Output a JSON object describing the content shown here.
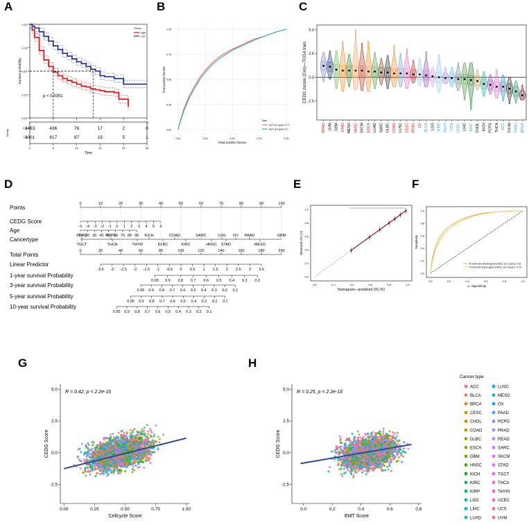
{
  "panel_letters": [
    "A",
    "B",
    "C",
    "D",
    "E",
    "F",
    "G",
    "H"
  ],
  "chart_data": [
    {
      "id": "A",
      "type": "line",
      "title": "",
      "xlabel": "Time",
      "ylabel": "Survival probability",
      "xlim": [
        0,
        25
      ],
      "ylim": [
        0,
        1
      ],
      "xticks": [
        "0",
        "5",
        "10",
        "15",
        "20",
        "25"
      ],
      "yticks": [
        "0.00",
        "0.25",
        "0.50",
        "0.75",
        "1.00"
      ],
      "legend_title": "Group",
      "series": [
        {
          "name": "High",
          "color": "#e41a1c",
          "x": [
            0,
            0.5,
            1,
            2,
            3,
            4,
            5,
            6,
            7,
            8,
            9,
            10,
            11,
            12,
            13,
            14,
            15,
            16,
            17,
            18,
            19,
            20,
            21
          ],
          "y": [
            1,
            0.94,
            0.86,
            0.72,
            0.62,
            0.55,
            0.49,
            0.45,
            0.42,
            0.4,
            0.38,
            0.36,
            0.34,
            0.33,
            0.31,
            0.3,
            0.29,
            0.28,
            0.28,
            0.27,
            0.2,
            0.2,
            0.12
          ]
        },
        {
          "name": "Low",
          "color": "#2b3a8f",
          "x": [
            0,
            0.5,
            1,
            2,
            3,
            4,
            5,
            6,
            7,
            8,
            9,
            10,
            11,
            12,
            13,
            14,
            15,
            16,
            17,
            18,
            19,
            20,
            21,
            25
          ],
          "y": [
            1,
            0.98,
            0.96,
            0.92,
            0.87,
            0.82,
            0.77,
            0.73,
            0.69,
            0.66,
            0.63,
            0.6,
            0.58,
            0.55,
            0.52,
            0.5,
            0.45,
            0.44,
            0.44,
            0.42,
            0.42,
            0.36,
            0.36,
            0.36
          ]
        }
      ],
      "annotation": "p < 0.0001",
      "median_lines": {
        "y": 0.5,
        "x": [
          5,
          13.5
        ]
      },
      "risk_table": {
        "ylabel": "Group",
        "times": [
          "0",
          "5",
          "10",
          "15",
          "20",
          "25"
        ],
        "rows": [
          {
            "group": "High",
            "counts": [
              "3483",
              "436",
              "76",
              "17",
              "2",
              "0"
            ]
          },
          {
            "group": "Low",
            "counts": [
              "3001",
              "617",
              "87",
              "15",
              "5",
              "1"
            ]
          }
        ]
      }
    },
    {
      "id": "B",
      "type": "line",
      "title": "",
      "xlabel": "False positive fraction",
      "ylabel": "True positive fraction",
      "xlim": [
        0,
        1
      ],
      "ylim": [
        0,
        1
      ],
      "xticks": [
        "0.00",
        "0.25",
        "0.50",
        "0.75",
        "1.00"
      ],
      "yticks": [
        "0.00",
        "0.25",
        "0.50",
        "0.75",
        "1.00"
      ],
      "legend_title": "Type",
      "series": [
        {
          "name": "AUC at 3 years: 0.77",
          "color": "#f4685c",
          "x": [
            0,
            0.02,
            0.05,
            0.1,
            0.15,
            0.2,
            0.25,
            0.3,
            0.35,
            0.4,
            0.5,
            0.6,
            0.7,
            0.8,
            0.9,
            1.0
          ],
          "y": [
            0,
            0.09,
            0.2,
            0.33,
            0.43,
            0.52,
            0.59,
            0.65,
            0.7,
            0.74,
            0.8,
            0.85,
            0.9,
            0.93,
            0.97,
            1.0
          ]
        },
        {
          "name": "AUC at 5 years: 0.7",
          "color": "#13b6bf",
          "x": [
            0,
            0.02,
            0.05,
            0.1,
            0.15,
            0.2,
            0.25,
            0.3,
            0.35,
            0.4,
            0.5,
            0.6,
            0.7,
            0.8,
            0.9,
            1.0
          ],
          "y": [
            0,
            0.08,
            0.18,
            0.31,
            0.41,
            0.5,
            0.57,
            0.63,
            0.68,
            0.72,
            0.79,
            0.84,
            0.89,
            0.93,
            0.97,
            1.0
          ]
        }
      ]
    },
    {
      "id": "C",
      "type": "violin",
      "title": "",
      "xlabel": "",
      "ylabel": "CEDG zscore (Cox)—TCGA train",
      "ylim": [
        -4.5,
        5.5
      ],
      "yticks": [
        "-2.5",
        "0.0",
        "2.5",
        "5.0"
      ],
      "reference_line": 0,
      "categories": [
        "PRAD",
        "UVM",
        "GBM",
        "STAD",
        "MESO",
        "HNSC",
        "SKCM",
        "ESCA",
        "LUAD",
        "SARC",
        "DLBC",
        "COAD",
        "LUSC",
        "CESC",
        "READ",
        "OV",
        "BLCA",
        "LGG",
        "KIRP",
        "TGCT",
        "UCS",
        "UCEC",
        "LIHC",
        "KIRC",
        "CHOL",
        "KICH",
        "PCPG",
        "THCA",
        "ACC",
        "THYM",
        "PAAD",
        "BRCA"
      ],
      "label_colors": [
        "#e41a1c",
        "#000000",
        "#000000",
        "#e41a1c",
        "#000000",
        "#e41a1c",
        "#000000",
        "#e41a1c",
        "#000000",
        "#000000",
        "#000000",
        "#e41a1c",
        "#000000",
        "#e41a1c",
        "#e41a1c",
        "#e41a1c",
        "#2ca7e0",
        "#000000",
        "#2ca7e0",
        "#2ca7e0",
        "#2ca7e0",
        "#2ca7e0",
        "#000000",
        "#2ca7e0",
        "#000000",
        "#000000",
        "#000000",
        "#000000",
        "#2ca7e0",
        "#000000",
        "#2ca7e0",
        "#2ca7e0"
      ],
      "means": [
        1.2,
        1.1,
        0.8,
        0.7,
        0.7,
        0.7,
        0.7,
        0.6,
        0.6,
        0.5,
        0.5,
        0.4,
        0.4,
        0.4,
        0.3,
        0.3,
        0.2,
        0.1,
        0.0,
        -0.1,
        -0.1,
        -0.2,
        -0.2,
        -0.3,
        -0.4,
        -0.7,
        -0.8,
        -1.0,
        -1.0,
        -1.2,
        -1.5,
        -1.9
      ],
      "mins": [
        -0.5,
        -0.2,
        -1.2,
        -1.5,
        -1.0,
        -1.3,
        -1.4,
        -1.5,
        -1.2,
        -0.8,
        -1.2,
        -1.0,
        -1.0,
        -1.2,
        -0.6,
        -0.9,
        -1.0,
        -1.0,
        -1.6,
        -0.7,
        -1.0,
        -1.4,
        -2.4,
        -3.4,
        -1.3,
        -2.0,
        -1.8,
        -2.2,
        -2.5,
        -2.8,
        -2.7,
        -2.4
      ],
      "maxs": [
        2.6,
        2.8,
        2.8,
        3.8,
        2.4,
        5.0,
        3.6,
        3.8,
        2.6,
        2.0,
        2.3,
        3.4,
        2.5,
        3.0,
        1.8,
        2.0,
        2.7,
        1.0,
        2.4,
        1.1,
        1.1,
        1.5,
        1.5,
        1.5,
        0.8,
        0.6,
        0.3,
        0.8,
        0.2,
        0.0,
        -0.4,
        -0.8
      ],
      "colors": [
        "#7f8fc4",
        "#1f3b8a",
        "#6fbb5a",
        "#f28e2b",
        "#3c8d2f",
        "#f5a25d",
        "#c0392b",
        "#f28e2b",
        "#5fa04e",
        "#7a4f2b",
        "#333333",
        "#f28e2b",
        "#7da3c9",
        "#e377c2",
        "#c0392b",
        "#a6cee3",
        "#9b59b6",
        "#d3a8e0",
        "#8fd1ee",
        "#b39ddb",
        "#66c2ff",
        "#7f8c8d",
        "#4a9d3f",
        "#2e7d32",
        "#c7a66f",
        "#2bb5a3",
        "#9b59b6",
        "#e377c2",
        "#3f8fc9",
        "#333333",
        "#2b9b6e",
        "#8e1b3c"
      ]
    },
    {
      "id": "D",
      "type": "nomogram",
      "rows": [
        {
          "label": "Points",
          "ticks": [
            "0",
            "10",
            "20",
            "30",
            "40",
            "50",
            "60",
            "70",
            "80",
            "90",
            "100"
          ],
          "span": [
            0,
            100
          ]
        },
        {
          "label": "CEDG Score",
          "ticks": [
            "-5",
            "-4",
            "-3",
            "-2",
            "-1",
            "0",
            "1",
            "2",
            "3",
            "4",
            "5",
            "6"
          ],
          "span": [
            0,
            40
          ]
        },
        {
          "label": "Age",
          "ticks": [
            "10",
            "20",
            "30",
            "40",
            "50",
            "60",
            "70",
            "80",
            "90"
          ],
          "span": [
            0,
            28
          ]
        },
        {
          "label": "Cancertype",
          "ticks_top": [
            "PRAD",
            "PCPG",
            "KICH",
            "COAD",
            "SARC",
            "LGG",
            "OV",
            "PAAD",
            "GBM"
          ],
          "ticks_bottom": [
            "TGCT",
            "THCA",
            "THYM",
            "DLBC",
            "KIRC",
            "HNSC",
            "STAD",
            "MESO"
          ],
          "span": [
            0,
            100
          ]
        },
        {
          "label": "Total Points",
          "ticks": [
            "0",
            "20",
            "40",
            "60",
            "80",
            "100",
            "120",
            "140",
            "160",
            "180",
            "200"
          ],
          "span": [
            0,
            100
          ]
        },
        {
          "label": "Linear Predictor",
          "ticks": [
            "-3.5",
            "-3",
            "-2.5",
            "-2",
            "-1.5",
            "-1",
            "-0.5",
            "0",
            "0.5",
            "1",
            "1.5",
            "2",
            "2.5",
            "3",
            "3.5"
          ],
          "span": [
            10,
            90
          ]
        },
        {
          "label": "1-year survival Probability",
          "ticks": [
            "0.95",
            "0.9",
            "0.8",
            "0.7",
            "0.6",
            "0.5",
            "0.4",
            "0.3",
            "0.2"
          ],
          "span": [
            37,
            88
          ]
        },
        {
          "label": "3-year survival Probability",
          "ticks": [
            "0.95",
            "0.9",
            "0.8",
            "0.7",
            "0.6",
            "0.5",
            "0.4",
            "0.3",
            "0.2",
            "0.1"
          ],
          "span": [
            30,
            77
          ]
        },
        {
          "label": "5-year survival Probability",
          "ticks": [
            "0.95",
            "0.9",
            "0.8",
            "0.7",
            "0.6",
            "0.5",
            "0.4",
            "0.3",
            "0.2",
            "0.1"
          ],
          "span": [
            25,
            72
          ]
        },
        {
          "label": "10-year survival Probability",
          "ticks": [
            "0.95",
            "0.9",
            "0.8",
            "0.7",
            "0.6",
            "0.5",
            "0.4",
            "0.3",
            "0.2",
            "0.1"
          ],
          "span": [
            18,
            64
          ]
        }
      ]
    },
    {
      "id": "E",
      "type": "scatter",
      "title": "",
      "xlabel": "Nomogram—predicted OS (%)",
      "ylabel": "Observed OS (%)",
      "xlim": [
        0,
        1
      ],
      "ylim": [
        0,
        1
      ],
      "xticks": [
        "0.0",
        "0.2",
        "0.4",
        "0.6",
        "0.8",
        "1.0"
      ],
      "yticks": [
        "0.0",
        "0.2",
        "0.4",
        "0.6",
        "0.8",
        "1.0"
      ],
      "x": [
        0.39,
        0.59,
        0.7,
        0.8,
        0.86,
        0.92,
        0.98
      ],
      "y": [
        0.39,
        0.59,
        0.7,
        0.8,
        0.86,
        0.92,
        0.98
      ],
      "color": "#8b1a2b"
    },
    {
      "id": "F",
      "type": "line",
      "title": "",
      "xlabel": "1—Specificity",
      "ylabel": "Sensitivity",
      "xlim": [
        0,
        1
      ],
      "ylim": [
        0,
        1
      ],
      "xticks": [
        "0.0",
        "0.2",
        "0.4",
        "0.6",
        "0.8",
        "1.0"
      ],
      "yticks": [
        "0.0",
        "0.2",
        "0.4",
        "0.6",
        "0.8",
        "1.0"
      ],
      "series": [
        {
          "name": "TCGA train (Nomogram) AUC at 3 years: 0.8",
          "color": "#d9b64a",
          "x": [
            0,
            0.02,
            0.05,
            0.1,
            0.15,
            0.2,
            0.3,
            0.4,
            0.5,
            0.6,
            0.7,
            0.8,
            0.9,
            1.0
          ],
          "y": [
            0,
            0.25,
            0.42,
            0.58,
            0.68,
            0.75,
            0.84,
            0.9,
            0.94,
            0.97,
            0.98,
            0.99,
            1.0,
            1.0
          ]
        },
        {
          "name": "TCGA test (Nomogram) AUC at 3 years: 0.79",
          "color": "#e8c964",
          "x": [
            0,
            0.02,
            0.05,
            0.1,
            0.15,
            0.2,
            0.3,
            0.4,
            0.5,
            0.6,
            0.7,
            0.8,
            0.9,
            1.0
          ],
          "y": [
            0,
            0.2,
            0.36,
            0.52,
            0.63,
            0.71,
            0.81,
            0.88,
            0.93,
            0.96,
            0.98,
            0.99,
            1.0,
            1.0
          ]
        }
      ]
    },
    {
      "id": "G",
      "type": "scatter",
      "title": "",
      "annotation": "R = 0.42, p < 2.2e-16",
      "xlabel": "Cellcycle Score",
      "ylabel": "CEDG Score",
      "xlim": [
        -0.03,
        1.03
      ],
      "ylim": [
        -4.0,
        5.4
      ],
      "xticks": [
        "0.00",
        "0.25",
        "0.50",
        "0.75",
        "1.00"
      ],
      "yticks": [
        "-2.5",
        "0.0",
        "2.5",
        "5.0"
      ],
      "regression": {
        "x": [
          0.0,
          1.0
        ],
        "y": [
          -1.25,
          1.15
        ]
      }
    },
    {
      "id": "H",
      "type": "scatter",
      "title": "",
      "annotation": "R = 0.25, p < 2.2e-16",
      "xlabel": "EMT Score",
      "ylabel": "CEDG Score",
      "xlim": [
        -0.08,
        0.82
      ],
      "ylim": [
        -4.0,
        5.4
      ],
      "xticks": [
        "0.0",
        "0.2",
        "0.4",
        "0.6",
        "0.8"
      ],
      "yticks": [
        "-2.5",
        "0.0",
        "2.5",
        "5.0"
      ],
      "regression": {
        "x": [
          -0.02,
          0.75
        ],
        "y": [
          -0.85,
          0.65
        ]
      }
    }
  ],
  "cancer_legend": {
    "title": "Cancer.type",
    "left": [
      {
        "label": "ACC",
        "color": "#f8766d"
      },
      {
        "label": "BLCA",
        "color": "#f07e4d"
      },
      {
        "label": "BRCA",
        "color": "#e68613"
      },
      {
        "label": "CESC",
        "color": "#d89000"
      },
      {
        "label": "CHOL",
        "color": "#c99800"
      },
      {
        "label": "COAD",
        "color": "#b79f00"
      },
      {
        "label": "DLBC",
        "color": "#a3a500"
      },
      {
        "label": "ESCA",
        "color": "#8bab00"
      },
      {
        "label": "GBM",
        "color": "#6bb100"
      },
      {
        "label": "HNSC",
        "color": "#39b600"
      },
      {
        "label": "KICH",
        "color": "#00ba38"
      },
      {
        "label": "KIRC",
        "color": "#00bc59"
      },
      {
        "label": "KIRP",
        "color": "#00bf7d"
      },
      {
        "label": "LGG",
        "color": "#00c19a"
      },
      {
        "label": "LIHC",
        "color": "#00c0b4"
      },
      {
        "label": "LUAD",
        "color": "#00bfc4"
      }
    ],
    "right": [
      {
        "label": "LUSC",
        "color": "#00bad5"
      },
      {
        "label": "MESO",
        "color": "#00b4e4"
      },
      {
        "label": "OV",
        "color": "#00a9ff"
      },
      {
        "label": "PAAD",
        "color": "#35a2ff"
      },
      {
        "label": "PCPG",
        "color": "#7997ff"
      },
      {
        "label": "PRAD",
        "color": "#9590ff"
      },
      {
        "label": "READ",
        "color": "#b186ff"
      },
      {
        "label": "SARC",
        "color": "#c77cff"
      },
      {
        "label": "SKCM",
        "color": "#db72fb"
      },
      {
        "label": "STAD",
        "color": "#e76bf3"
      },
      {
        "label": "TGCT",
        "color": "#f564e3"
      },
      {
        "label": "THCA",
        "color": "#fc61d5"
      },
      {
        "label": "THYM",
        "color": "#ff62bc"
      },
      {
        "label": "UCEC",
        "color": "#ff67a4"
      },
      {
        "label": "UCS",
        "color": "#ff6c90"
      },
      {
        "label": "UVM",
        "color": "#fb727d"
      }
    ]
  }
}
